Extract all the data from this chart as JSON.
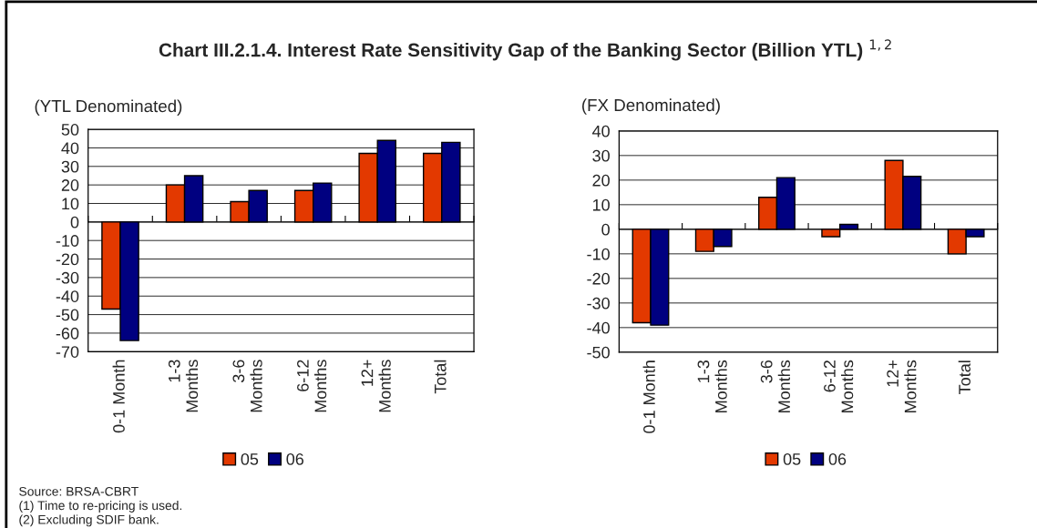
{
  "chart_data": [
    {
      "type": "bar",
      "title": "Chart III.2.1.4. Interest Rate Sensitivity Gap of the Banking Sector (Billion YTL) $^{1,2}$",
      "subtitle": "(YTL Denominated)",
      "categories": [
        "0-1 Month",
        "1-3\nMonths",
        "3-6\nMonths",
        "6-12\nMonths",
        "12+\nMonths",
        "Total"
      ],
      "series": [
        {
          "name": "05",
          "color": "#e33900",
          "values": [
            -47,
            20,
            11,
            17,
            37,
            37
          ]
        },
        {
          "name": "06",
          "color": "#000080",
          "values": [
            -64,
            25,
            17,
            21,
            44,
            43
          ]
        }
      ],
      "ylim": [
        -70,
        50
      ],
      "yticks": [
        -70,
        -60,
        -50,
        -40,
        -30,
        -20,
        -10,
        0,
        10,
        20,
        30,
        40,
        50
      ],
      "grid": "y",
      "legend": "bottom",
      "annotations": [
        "Source: BRSA-CBRT",
        "(1) Time to re-pricing is used.",
        "(2) Excluding SDIF bank."
      ]
    },
    {
      "type": "bar",
      "subtitle": "(FX Denominated)",
      "categories": [
        "0-1 Month",
        "1-3\nMonths",
        "3-6\nMonths",
        "6-12\nMonths",
        "12+\nMonths",
        "Total"
      ],
      "series": [
        {
          "name": "05",
          "color": "#e33900",
          "values": [
            -38,
            -9,
            13,
            -3,
            28,
            -10
          ]
        },
        {
          "name": "06",
          "color": "#000080",
          "values": [
            -39,
            -7,
            21,
            2,
            21.5,
            -3
          ]
        }
      ],
      "ylim": [
        -50,
        40
      ],
      "yticks": [
        -50,
        -40,
        -30,
        -20,
        -10,
        0,
        10,
        20,
        30,
        40
      ],
      "grid": "y",
      "legend": "bottom"
    }
  ]
}
